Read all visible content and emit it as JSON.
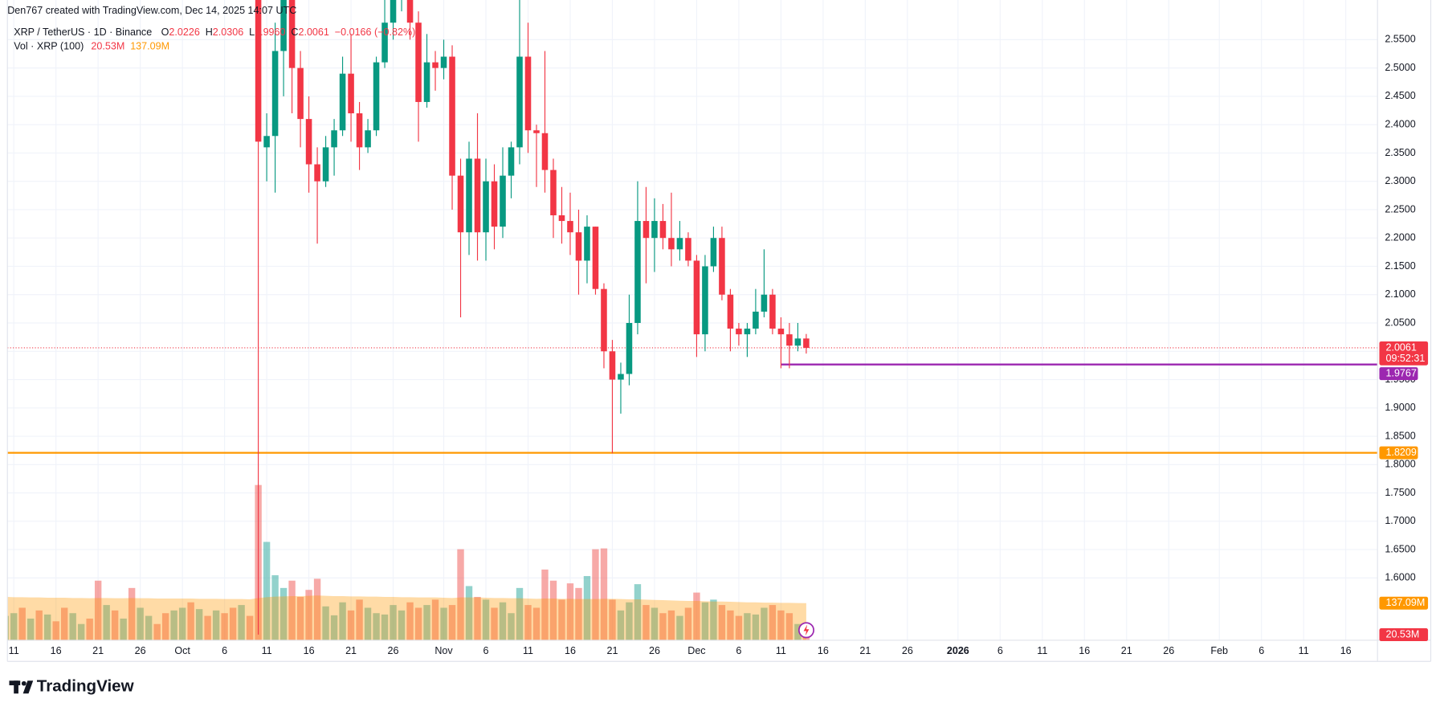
{
  "header": {
    "credit": "Den767 created with TradingView.com, Dec 14, 2025 14:07 UTC",
    "brand": "TradingView"
  },
  "chart_data": {
    "type": "candlestick",
    "symbol": "XRP / TetherUS · 1D · Binance",
    "ohlc_legend": [
      {
        "key": "O",
        "value": "2.0226"
      },
      {
        "key": "H",
        "value": "2.0306"
      },
      {
        "key": "L",
        "value": "1.9960"
      },
      {
        "key": "C",
        "value": "2.0061"
      }
    ],
    "change": "−0.0166 (−0.82%)",
    "x": [
      "2025-10-10",
      "2025-10-11",
      "2025-10-12",
      "2025-10-13",
      "2025-10-14",
      "2025-10-15",
      "2025-10-16",
      "2025-10-17",
      "2025-10-18",
      "2025-10-19",
      "2025-10-20",
      "2025-10-21",
      "2025-10-22",
      "2025-10-23",
      "2025-10-24",
      "2025-10-25",
      "2025-10-26",
      "2025-10-27",
      "2025-10-28",
      "2025-10-29",
      "2025-10-30",
      "2025-10-31",
      "2025-11-01",
      "2025-11-02",
      "2025-11-03",
      "2025-11-04",
      "2025-11-05",
      "2025-11-06",
      "2025-11-07",
      "2025-11-08",
      "2025-11-09",
      "2025-11-10",
      "2025-11-11",
      "2025-11-12",
      "2025-11-13",
      "2025-11-14",
      "2025-11-15",
      "2025-11-16",
      "2025-11-17",
      "2025-11-18",
      "2025-11-19",
      "2025-11-20",
      "2025-11-21",
      "2025-11-22",
      "2025-11-23",
      "2025-11-24",
      "2025-11-25",
      "2025-11-26",
      "2025-11-27",
      "2025-11-28",
      "2025-11-29",
      "2025-11-30",
      "2025-12-01",
      "2025-12-02",
      "2025-12-03",
      "2025-12-04",
      "2025-12-05",
      "2025-12-06",
      "2025-12-07",
      "2025-12-08",
      "2025-12-09",
      "2025-12-10",
      "2025-12-11",
      "2025-12-12",
      "2025-12-13",
      "2025-12-14"
    ],
    "open": [
      2.83,
      2.36,
      2.38,
      2.53,
      2.62,
      2.5,
      2.41,
      2.33,
      2.3,
      2.36,
      2.39,
      2.49,
      2.42,
      2.36,
      2.39,
      2.51,
      2.58,
      2.63,
      2.65,
      2.58,
      2.44,
      2.51,
      2.5,
      2.52,
      2.31,
      2.21,
      2.34,
      2.21,
      2.3,
      2.22,
      2.31,
      2.36,
      2.52,
      2.39,
      2.385,
      2.32,
      2.24,
      2.23,
      2.21,
      2.16,
      2.22,
      2.11,
      2.0,
      1.95,
      1.96,
      2.05,
      2.23,
      2.2,
      2.23,
      2.2,
      2.18,
      2.2,
      2.16,
      2.03,
      2.15,
      2.2,
      2.1,
      2.04,
      2.03,
      2.04,
      2.07,
      2.1,
      2.04,
      2.03,
      2.01,
      2.0226
    ],
    "high": [
      2.86,
      2.42,
      2.58,
      2.66,
      2.64,
      2.53,
      2.45,
      2.36,
      2.38,
      2.41,
      2.52,
      2.56,
      2.44,
      2.41,
      2.52,
      2.62,
      2.68,
      2.7,
      2.69,
      2.6,
      2.56,
      2.53,
      2.55,
      2.54,
      2.34,
      2.37,
      2.42,
      2.34,
      2.33,
      2.36,
      2.37,
      2.62,
      2.58,
      2.4,
      2.53,
      2.34,
      2.29,
      2.28,
      2.25,
      2.24,
      2.22,
      2.12,
      2.02,
      1.98,
      2.1,
      2.3,
      2.29,
      2.27,
      2.26,
      2.28,
      2.23,
      2.21,
      2.17,
      2.17,
      2.22,
      2.22,
      2.11,
      2.05,
      2.05,
      2.11,
      2.18,
      2.11,
      2.06,
      2.05,
      2.05,
      2.0306
    ],
    "low": [
      1.5,
      2.3,
      2.28,
      2.45,
      2.42,
      2.36,
      2.28,
      2.19,
      2.29,
      2.31,
      2.38,
      2.37,
      2.32,
      2.35,
      2.38,
      2.5,
      2.55,
      2.6,
      2.55,
      2.37,
      2.43,
      2.46,
      2.48,
      2.25,
      2.06,
      2.17,
      2.16,
      2.16,
      2.18,
      2.2,
      2.27,
      2.33,
      2.35,
      2.29,
      2.28,
      2.2,
      2.19,
      2.17,
      2.1,
      2.12,
      2.1,
      1.97,
      1.82,
      1.89,
      1.94,
      2.03,
      2.12,
      2.14,
      2.18,
      2.15,
      2.16,
      2.15,
      1.99,
      2.0,
      2.14,
      2.09,
      2.0,
      2.01,
      1.99,
      2.03,
      2.06,
      2.03,
      1.97,
      1.97,
      2.0,
      1.996
    ],
    "close": [
      2.37,
      2.38,
      2.53,
      2.62,
      2.5,
      2.41,
      2.33,
      2.3,
      2.36,
      2.39,
      2.49,
      2.42,
      2.36,
      2.39,
      2.51,
      2.58,
      2.63,
      2.65,
      2.58,
      2.44,
      2.51,
      2.5,
      2.52,
      2.31,
      2.21,
      2.34,
      2.21,
      2.3,
      2.22,
      2.31,
      2.36,
      2.52,
      2.39,
      2.385,
      2.32,
      2.24,
      2.23,
      2.21,
      2.16,
      2.22,
      2.11,
      2.0,
      1.95,
      1.96,
      2.05,
      2.23,
      2.2,
      2.23,
      2.2,
      2.18,
      2.2,
      2.16,
      2.03,
      2.15,
      2.2,
      2.1,
      2.04,
      2.03,
      2.04,
      2.07,
      2.1,
      2.04,
      2.03,
      2.01,
      2.0226,
      2.0061
    ],
    "up_color": "#089981",
    "down_color": "#f23645",
    "xlim": [
      "2025-09-10",
      "2026-02-19"
    ],
    "xticks": [
      {
        "value": "2025-09-11",
        "label": "11"
      },
      {
        "value": "2025-09-16",
        "label": "16"
      },
      {
        "value": "2025-09-21",
        "label": "21"
      },
      {
        "value": "2025-09-26",
        "label": "26"
      },
      {
        "value": "2025-10-01",
        "label": "Oct"
      },
      {
        "value": "2025-10-06",
        "label": "6"
      },
      {
        "value": "2025-10-11",
        "label": "11"
      },
      {
        "value": "2025-10-16",
        "label": "16"
      },
      {
        "value": "2025-10-21",
        "label": "21"
      },
      {
        "value": "2025-10-26",
        "label": "26"
      },
      {
        "value": "2025-11-01",
        "label": "Nov"
      },
      {
        "value": "2025-11-06",
        "label": "6"
      },
      {
        "value": "2025-11-11",
        "label": "11"
      },
      {
        "value": "2025-11-16",
        "label": "16"
      },
      {
        "value": "2025-11-21",
        "label": "21"
      },
      {
        "value": "2025-11-26",
        "label": "26"
      },
      {
        "value": "2025-12-01",
        "label": "Dec"
      },
      {
        "value": "2025-12-06",
        "label": "6"
      },
      {
        "value": "2025-12-11",
        "label": "11"
      },
      {
        "value": "2025-12-16",
        "label": "16"
      },
      {
        "value": "2025-12-21",
        "label": "21"
      },
      {
        "value": "2025-12-26",
        "label": "26"
      },
      {
        "value": "2026-01-01",
        "label": "2026"
      },
      {
        "value": "2026-01-06",
        "label": "6"
      },
      {
        "value": "2026-01-11",
        "label": "11"
      },
      {
        "value": "2026-01-16",
        "label": "16"
      },
      {
        "value": "2026-01-21",
        "label": "21"
      },
      {
        "value": "2026-01-26",
        "label": "26"
      },
      {
        "value": "2026-02-01",
        "label": "Feb"
      },
      {
        "value": "2026-02-06",
        "label": "6"
      },
      {
        "value": "2026-02-11",
        "label": "11"
      },
      {
        "value": "2026-02-16",
        "label": "16"
      }
    ],
    "ylim": [
      1.49,
      2.62
    ],
    "yticks": [
      {
        "value": 1.6,
        "label": "1.6000"
      },
      {
        "value": 1.65,
        "label": "1.6500"
      },
      {
        "value": 1.7,
        "label": "1.7000"
      },
      {
        "value": 1.75,
        "label": "1.7500"
      },
      {
        "value": 1.8,
        "label": "1.8000"
      },
      {
        "value": 1.85,
        "label": "1.8500"
      },
      {
        "value": 1.9,
        "label": "1.9000"
      },
      {
        "value": 1.95,
        "label": "1.9500"
      },
      {
        "value": 2.0,
        "label": "2.0000"
      },
      {
        "value": 2.05,
        "label": "2.0500"
      },
      {
        "value": 2.1,
        "label": "2.1000"
      },
      {
        "value": 2.15,
        "label": "2.1500"
      },
      {
        "value": 2.2,
        "label": "2.2000"
      },
      {
        "value": 2.25,
        "label": "2.2500"
      },
      {
        "value": 2.3,
        "label": "2.3000"
      },
      {
        "value": 2.35,
        "label": "2.3500"
      },
      {
        "value": 2.4,
        "label": "2.4000"
      },
      {
        "value": 2.45,
        "label": "2.4500"
      },
      {
        "value": 2.5,
        "label": "2.5000"
      },
      {
        "value": 2.55,
        "label": "2.5500"
      }
    ],
    "grid": true,
    "last_price": {
      "value": 2.0061,
      "countdown": "09:52:31",
      "color": "#f23645"
    },
    "price_lines": [
      {
        "value": 1.9767,
        "color": "#9c27b0",
        "from": "2025-12-11"
      },
      {
        "value": 1.8209,
        "color": "#ff9800"
      }
    ],
    "volume": {
      "name": "Vol · XRP (100)",
      "x": [
        "2025-09-10",
        "2025-09-11",
        "2025-09-12",
        "2025-09-13",
        "2025-09-14",
        "2025-09-15",
        "2025-09-16",
        "2025-09-17",
        "2025-09-18",
        "2025-09-19",
        "2025-09-20",
        "2025-09-21",
        "2025-09-22",
        "2025-09-23",
        "2025-09-24",
        "2025-09-25",
        "2025-09-26",
        "2025-09-27",
        "2025-09-28",
        "2025-09-29",
        "2025-09-30",
        "2025-10-01",
        "2025-10-02",
        "2025-10-03",
        "2025-10-04",
        "2025-10-05",
        "2025-10-06",
        "2025-10-07",
        "2025-10-08",
        "2025-10-09",
        "2025-10-10",
        "2025-10-11",
        "2025-10-12",
        "2025-10-13",
        "2025-10-14",
        "2025-10-15",
        "2025-10-16",
        "2025-10-17",
        "2025-10-18",
        "2025-10-19",
        "2025-10-20",
        "2025-10-21",
        "2025-10-22",
        "2025-10-23",
        "2025-10-24",
        "2025-10-25",
        "2025-10-26",
        "2025-10-27",
        "2025-10-28",
        "2025-10-29",
        "2025-10-30",
        "2025-10-31",
        "2025-11-01",
        "2025-11-02",
        "2025-11-03",
        "2025-11-04",
        "2025-11-05",
        "2025-11-06",
        "2025-11-07",
        "2025-11-08",
        "2025-11-09",
        "2025-11-10",
        "2025-11-11",
        "2025-11-12",
        "2025-11-13",
        "2025-11-14",
        "2025-11-15",
        "2025-11-16",
        "2025-11-17",
        "2025-11-18",
        "2025-11-19",
        "2025-11-20",
        "2025-11-21",
        "2025-11-22",
        "2025-11-23",
        "2025-11-24",
        "2025-11-25",
        "2025-11-26",
        "2025-11-27",
        "2025-11-28",
        "2025-11-29",
        "2025-11-30",
        "2025-12-01",
        "2025-12-02",
        "2025-12-03",
        "2025-12-04",
        "2025-12-05",
        "2025-12-06",
        "2025-12-07",
        "2025-12-08",
        "2025-12-09",
        "2025-12-10",
        "2025-12-11",
        "2025-12-12",
        "2025-12-13",
        "2025-12-14"
      ],
      "values": [
        90,
        100,
        120,
        80,
        110,
        95,
        70,
        120,
        100,
        60,
        80,
        220,
        130,
        110,
        80,
        193,
        120,
        90,
        60,
        100,
        110,
        120,
        140,
        115,
        90,
        110,
        100,
        120,
        130,
        90,
        573,
        363,
        240,
        193,
        220,
        160,
        186,
        227,
        125,
        92,
        140,
        110,
        150,
        120,
        100,
        95,
        130,
        110,
        140,
        120,
        130,
        150,
        120,
        130,
        336,
        200,
        160,
        150,
        120,
        140,
        100,
        193,
        130,
        120,
        261,
        220,
        150,
        210,
        193,
        237,
        336,
        339,
        150,
        110,
        140,
        207,
        130,
        120,
        100,
        110,
        90,
        120,
        176,
        140,
        150,
        130,
        110,
        90,
        100,
        95,
        120,
        130,
        110,
        100,
        60,
        20.53
      ],
      "colors": [
        "#26a69a80",
        "#26a69a80",
        "#ef535080",
        "#26a69a80",
        "#ef535080",
        "#26a69a80",
        "#ef535080",
        "#ef535080",
        "#26a69a80",
        "#26a69a80",
        "#ef535080",
        "#ef535080",
        "#26a69a80",
        "#ef535080",
        "#26a69a80",
        "#ef535080",
        "#26a69a80",
        "#26a69a80",
        "#ef535080",
        "#ef535080",
        "#26a69a80",
        "#26a69a80",
        "#ef535080",
        "#26a69a80",
        "#ef535080",
        "#26a69a80",
        "#ef535080",
        "#ef535080",
        "#26a69a80",
        "#ef535080",
        "#ef535080",
        "#26a69a80",
        "#26a69a80",
        "#26a69a80",
        "#ef535080",
        "#ef535080",
        "#ef535080",
        "#ef535080",
        "#26a69a80",
        "#26a69a80",
        "#26a69a80",
        "#ef535080",
        "#ef535080",
        "#26a69a80",
        "#26a69a80",
        "#26a69a80",
        "#26a69a80",
        "#26a69a80",
        "#ef535080",
        "#ef535080",
        "#26a69a80",
        "#ef535080",
        "#26a69a80",
        "#ef535080",
        "#ef535080",
        "#26a69a80",
        "#ef535080",
        "#26a69a80",
        "#ef535080",
        "#26a69a80",
        "#26a69a80",
        "#26a69a80",
        "#ef535080",
        "#ef535080",
        "#ef535080",
        "#ef535080",
        "#ef535080",
        "#ef535080",
        "#ef535080",
        "#26a69a80",
        "#ef535080",
        "#ef535080",
        "#ef535080",
        "#26a69a80",
        "#26a69a80",
        "#26a69a80",
        "#ef535080",
        "#26a69a80",
        "#ef535080",
        "#ef535080",
        "#26a69a80",
        "#ef535080",
        "#ef535080",
        "#26a69a80",
        "#26a69a80",
        "#ef535080",
        "#ef535080",
        "#ef535080",
        "#26a69a80",
        "#26a69a80",
        "#26a69a80",
        "#ef535080",
        "#ef535080",
        "#ef535080",
        "#26a69a80",
        "#ef535080"
      ],
      "ma": [
        160,
        159,
        159,
        158,
        158,
        157,
        157,
        157,
        156,
        156,
        155,
        156,
        156,
        155,
        155,
        156,
        155,
        155,
        154,
        154,
        154,
        154,
        154,
        153,
        153,
        153,
        152,
        152,
        152,
        151,
        156,
        159,
        161,
        162,
        163,
        163,
        164,
        165,
        164,
        163,
        163,
        162,
        162,
        161,
        161,
        160,
        160,
        159,
        159,
        158,
        158,
        158,
        157,
        156,
        158,
        158,
        158,
        157,
        156,
        156,
        155,
        155,
        154,
        153,
        154,
        154,
        153,
        153,
        152,
        152,
        152,
        153,
        153,
        152,
        151,
        151,
        150,
        149,
        148,
        147,
        146,
        145,
        145,
        144,
        143,
        143,
        142,
        141,
        140,
        140,
        139,
        139,
        138,
        138,
        137.5,
        137.09
      ],
      "ma_color": "#ff9800",
      "ylim": [
        0,
        600
      ],
      "last": {
        "value": 20.53,
        "label": "20.53M"
      },
      "ma_last": {
        "value": 137.09,
        "label": "137.09M"
      }
    }
  }
}
